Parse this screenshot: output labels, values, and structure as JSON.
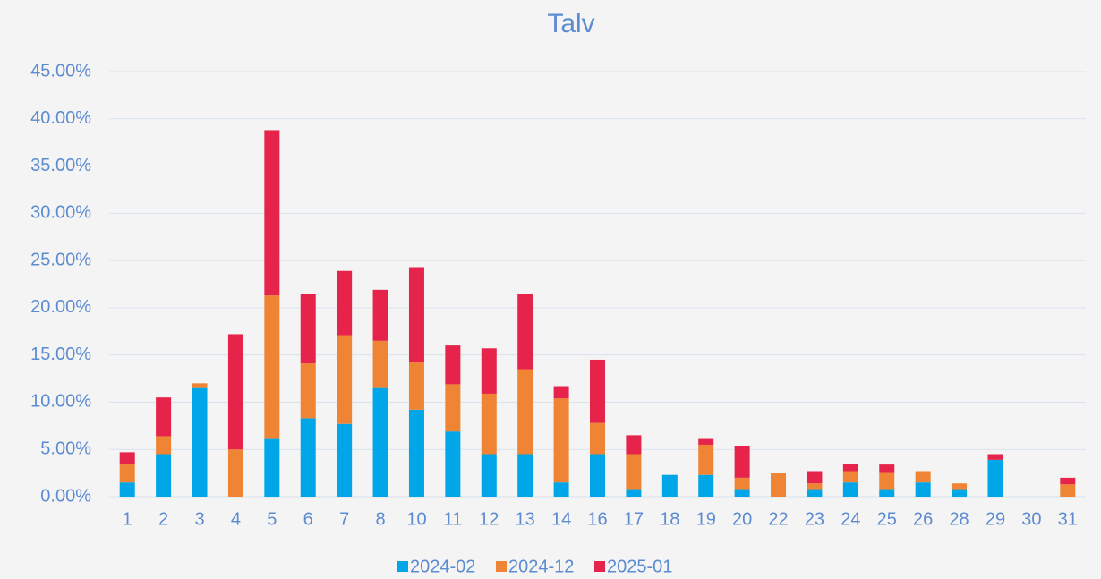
{
  "chart_data": {
    "type": "stacked_bar",
    "title": "Talv",
    "categories": [
      "1",
      "2",
      "3",
      "4",
      "5",
      "6",
      "7",
      "8",
      "10",
      "11",
      "12",
      "13",
      "14",
      "16",
      "17",
      "18",
      "19",
      "20",
      "22",
      "23",
      "24",
      "25",
      "26",
      "28",
      "29",
      "30",
      "31"
    ],
    "series": [
      {
        "name": "2024-02",
        "color": "#00a6e8",
        "values": [
          1.5,
          4.5,
          11.5,
          0,
          6.2,
          8.3,
          7.7,
          11.5,
          9.2,
          6.9,
          4.5,
          4.5,
          1.5,
          4.5,
          0.8,
          2.3,
          2.3,
          0.8,
          0,
          0.8,
          1.5,
          0.8,
          1.5,
          0.8,
          3.9,
          0,
          0
        ]
      },
      {
        "name": "2024-12",
        "color": "#ef8534",
        "values": [
          1.9,
          1.9,
          0.5,
          5.0,
          15.1,
          5.8,
          9.4,
          5.0,
          5.0,
          5.0,
          6.4,
          9.0,
          8.9,
          3.3,
          3.7,
          0,
          3.2,
          1.2,
          2.5,
          0.6,
          1.2,
          1.8,
          1.2,
          0.6,
          0,
          0,
          1.3
        ]
      },
      {
        "name": "2025-01",
        "color": "#e5234b",
        "values": [
          1.3,
          4.1,
          0,
          12.2,
          17.5,
          7.4,
          6.8,
          5.4,
          10.1,
          4.1,
          4.8,
          8.0,
          1.3,
          6.7,
          2.0,
          0,
          0.7,
          3.4,
          0,
          1.3,
          0.8,
          0.8,
          0,
          0,
          0.6,
          0,
          0.7
        ]
      }
    ],
    "ylim": [
      0,
      45
    ],
    "yticks": [
      {
        "value": 0,
        "label": "0.00%"
      },
      {
        "value": 5,
        "label": "5.00%"
      },
      {
        "value": 10,
        "label": "10.00%"
      },
      {
        "value": 15,
        "label": "15.00%"
      },
      {
        "value": 20,
        "label": "20.00%"
      },
      {
        "value": 25,
        "label": "25.00%"
      },
      {
        "value": 30,
        "label": "30.00%"
      },
      {
        "value": 35,
        "label": "35.00%"
      },
      {
        "value": 40,
        "label": "40.00%"
      },
      {
        "value": 45,
        "label": "45.00%"
      }
    ],
    "grid": true,
    "legend": "bottom"
  }
}
